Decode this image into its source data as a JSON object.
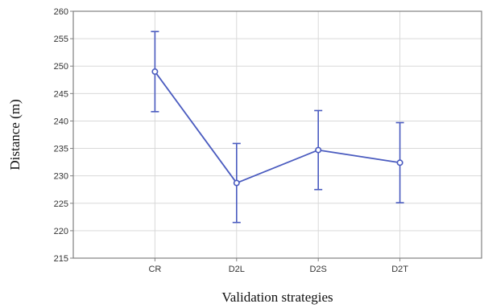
{
  "chart_data": {
    "type": "line",
    "categories": [
      "CR",
      "D2L",
      "D2S",
      "D2T"
    ],
    "series": [
      {
        "values": [
          249.0,
          228.7,
          234.7,
          232.4
        ],
        "error_low": [
          241.7,
          221.5,
          227.5,
          225.1
        ],
        "error_high": [
          256.3,
          235.9,
          241.9,
          239.7
        ]
      }
    ],
    "xlabel": "Validation strategies",
    "ylabel": "Distance (m)",
    "ylim": [
      215,
      260
    ],
    "yticks": [
      215,
      220,
      225,
      230,
      235,
      240,
      245,
      250,
      255,
      260
    ],
    "grid": true,
    "line_color": "#4a5bbf",
    "grid_color": "#d9d9d9",
    "axis_color": "#808080"
  }
}
